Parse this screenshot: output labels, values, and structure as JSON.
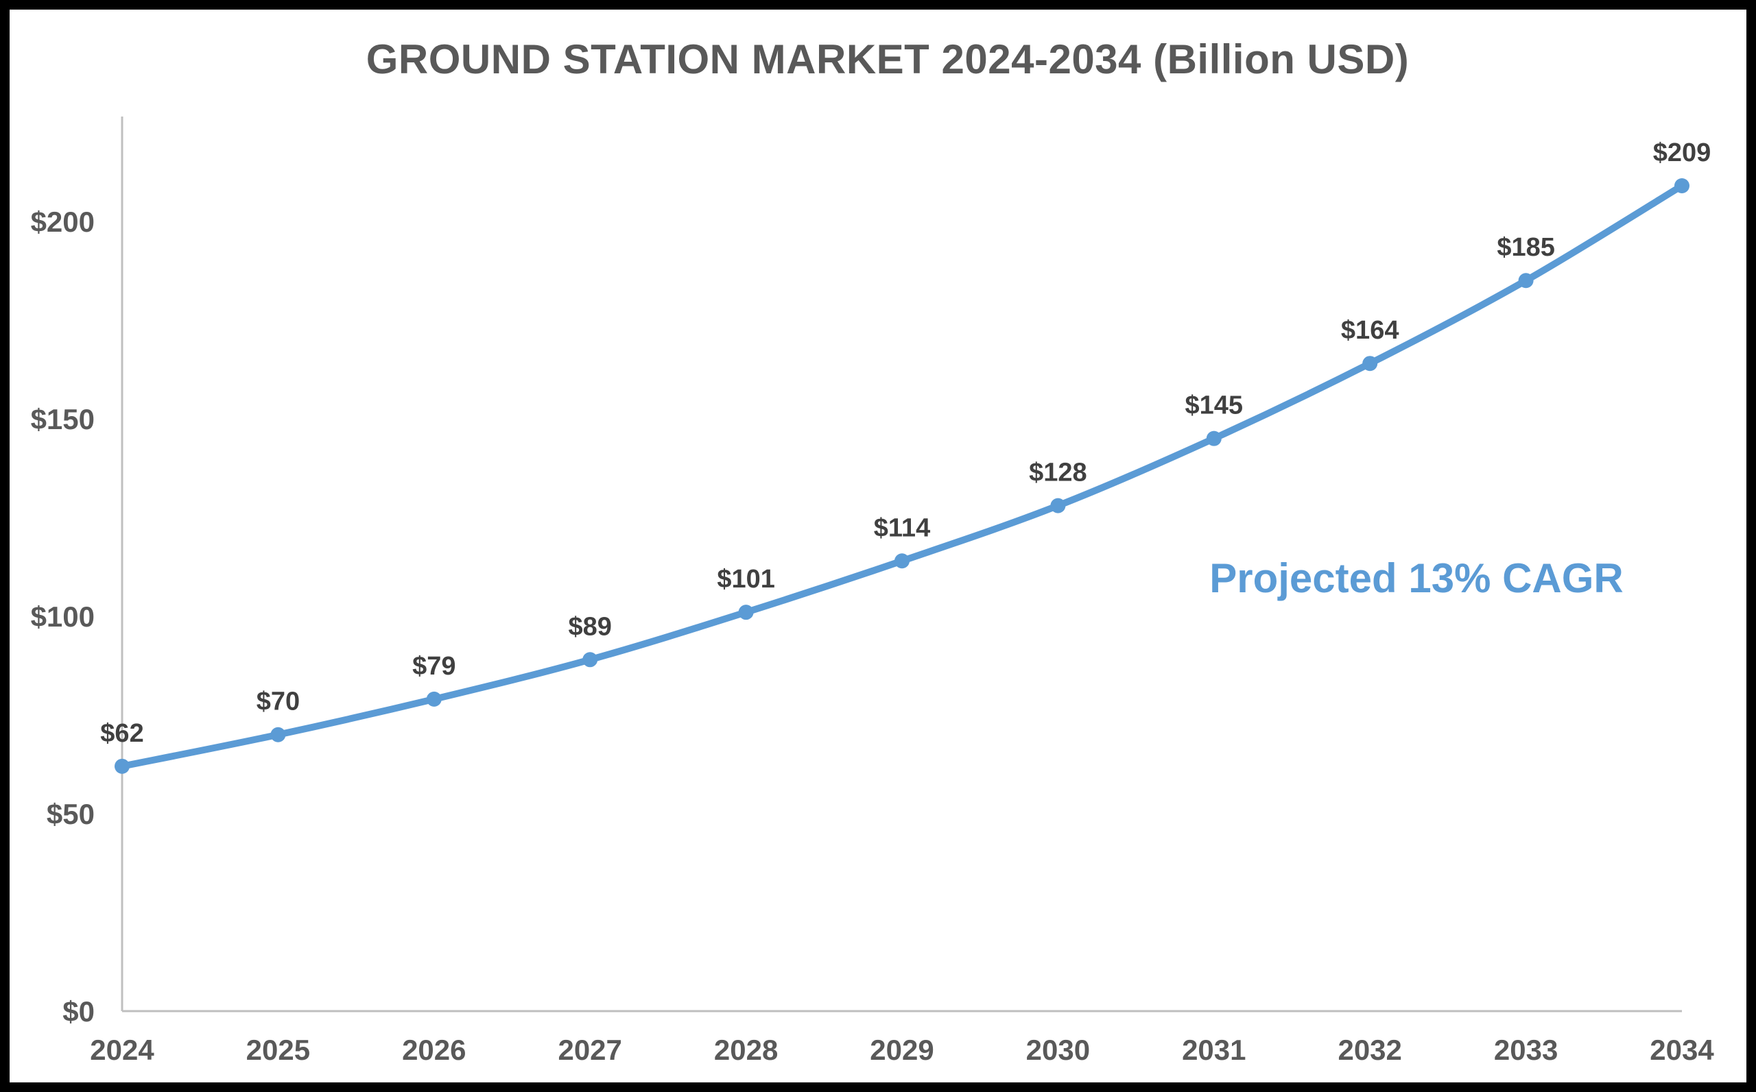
{
  "chart_data": {
    "type": "line",
    "title": "GROUND STATION MARKET 2024-2034 (Billion USD)",
    "xlabel": "",
    "ylabel": "",
    "categories": [
      "2024",
      "2025",
      "2026",
      "2027",
      "2028",
      "2029",
      "2030",
      "2031",
      "2032",
      "2033",
      "2034"
    ],
    "series": [
      {
        "values": [
          62,
          70,
          79,
          89,
          101,
          114,
          128,
          145,
          164,
          185,
          209
        ],
        "data_labels": [
          "$62",
          "$70",
          "$79",
          "$89",
          "$101",
          "$114",
          "$128",
          "$145",
          "$164",
          "$185",
          "$209"
        ],
        "color": "#5B9BD5"
      }
    ],
    "ylim": [
      0,
      230
    ],
    "y_ticks": [
      0,
      50,
      100,
      150,
      200
    ],
    "y_tick_labels": [
      "$0",
      "$50",
      "$100",
      "$150",
      "$200"
    ],
    "grid": false,
    "legend": "none",
    "annotation": {
      "text": "Projected 13% CAGR",
      "color": "#5B9BD5"
    },
    "axis_color": "#BFBFBF",
    "text_color": "#595959"
  }
}
